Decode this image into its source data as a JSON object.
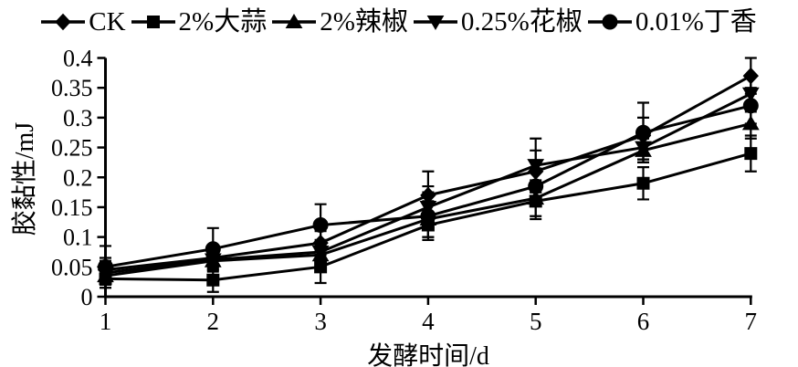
{
  "figure": {
    "background": "#ffffff",
    "ink_color": "#000000"
  },
  "chart_data": {
    "type": "line",
    "title": "",
    "xlabel": "发酵时间/d",
    "ylabel": "胶黏性/mJ",
    "x": [
      1,
      2,
      3,
      4,
      5,
      6,
      7
    ],
    "xticks": [
      "1",
      "2",
      "3",
      "4",
      "5",
      "6",
      "7"
    ],
    "yticks": [
      "0",
      "0.05",
      "0.1",
      "0.15",
      "0.2",
      "0.25",
      "0.3",
      "0.35",
      "0.4"
    ],
    "ytick_values": [
      0,
      0.05,
      0.1,
      0.15,
      0.2,
      0.25,
      0.3,
      0.35,
      0.4
    ],
    "xlim": [
      1,
      7
    ],
    "ylim": [
      0,
      0.4
    ],
    "grid": false,
    "legend_position": "top",
    "error_bars": true,
    "series": [
      {
        "name": "CK",
        "marker": "diamond",
        "values": [
          0.045,
          0.065,
          0.09,
          0.17,
          0.21,
          0.27,
          0.37
        ],
        "errors": [
          0.02,
          0.015,
          0.02,
          0.04,
          0.035,
          0.03,
          0.03
        ]
      },
      {
        "name": "2%大蒜",
        "marker": "square",
        "values": [
          0.03,
          0.028,
          0.05,
          0.12,
          0.16,
          0.19,
          0.24
        ],
        "errors": [
          0.015,
          0.02,
          0.027,
          0.02,
          0.03,
          0.027,
          0.03
        ]
      },
      {
        "name": "2%辣椒",
        "marker": "triangle-up",
        "values": [
          0.035,
          0.06,
          0.07,
          0.13,
          0.165,
          0.245,
          0.29
        ],
        "errors": [
          0.015,
          0.015,
          0.02,
          0.03,
          0.03,
          0.02,
          0.025
        ]
      },
      {
        "name": "0.25%花椒",
        "marker": "triangle-down",
        "values": [
          0.04,
          0.062,
          0.075,
          0.15,
          0.22,
          0.25,
          0.34
        ],
        "errors": [
          0.02,
          0.02,
          0.02,
          0.035,
          0.045,
          0.02,
          0.03
        ]
      },
      {
        "name": "0.01%丁香",
        "marker": "circle",
        "values": [
          0.05,
          0.08,
          0.12,
          0.135,
          0.185,
          0.275,
          0.32
        ],
        "errors": [
          0.035,
          0.035,
          0.035,
          0.04,
          0.03,
          0.05,
          0.03
        ]
      }
    ]
  }
}
